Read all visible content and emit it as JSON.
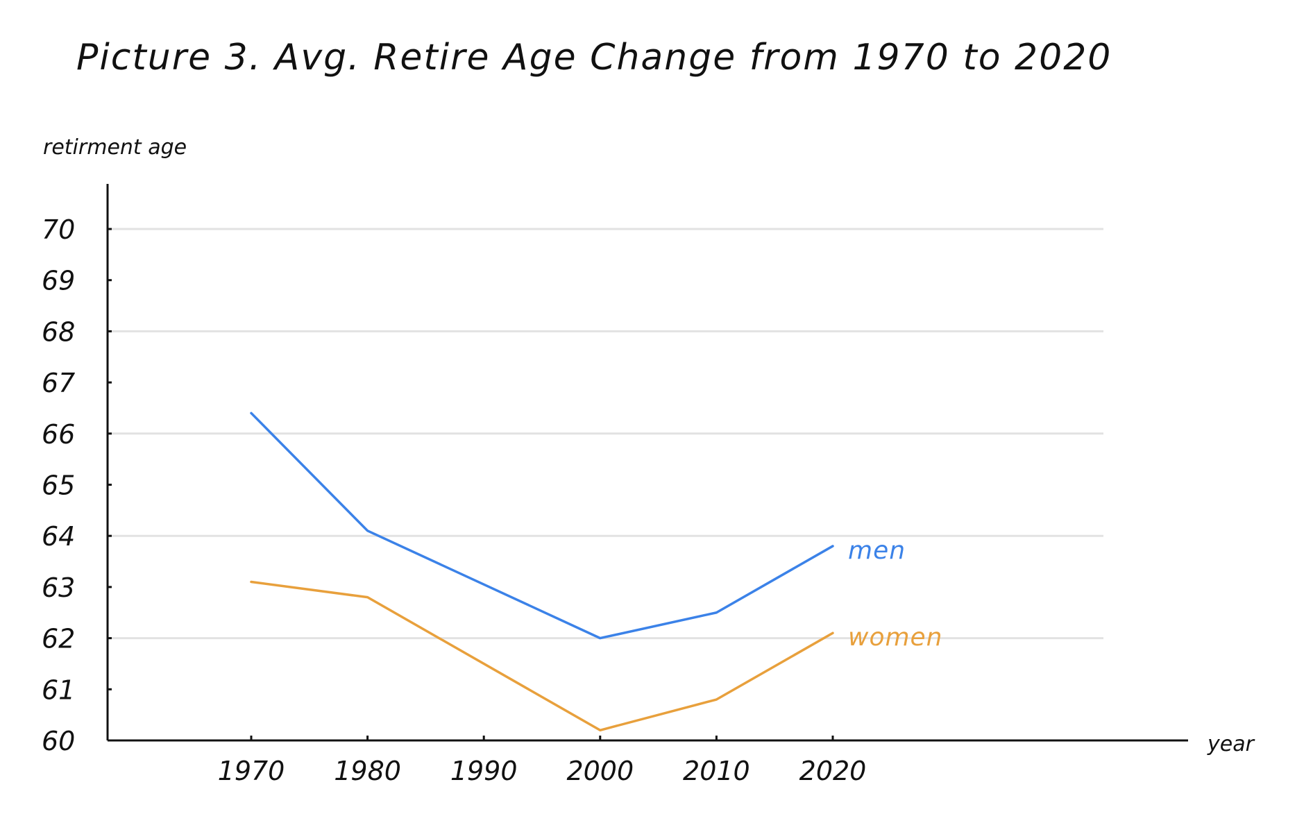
{
  "chart_data": {
    "type": "line",
    "title": "Picture 3. Avg. Retire Age Change from 1970 to 2020",
    "xlabel": "year",
    "ylabel": "retirment age",
    "x_ticks": [
      "1970",
      "1980",
      "1990",
      "2000",
      "2010",
      "2020"
    ],
    "y_ticks": [
      "60",
      "61",
      "62",
      "63",
      "64",
      "65",
      "66",
      "67",
      "68",
      "69",
      "70"
    ],
    "x": [
      1970,
      1980,
      2000,
      2010,
      2020
    ],
    "ylim": [
      60,
      70
    ],
    "grid": true,
    "gridlines_at": [
      62,
      64,
      66,
      68,
      70
    ],
    "legend": "inline-right",
    "series": [
      {
        "name": "men",
        "color": "#3b82e8",
        "values": [
          66.4,
          64.1,
          62.0,
          62.5,
          63.8
        ]
      },
      {
        "name": "women",
        "color": "#e8a03c",
        "values": [
          63.1,
          62.8,
          60.2,
          60.8,
          62.1
        ]
      }
    ]
  },
  "colors": {
    "axis": "#111111",
    "grid": "#e2e2e2"
  }
}
